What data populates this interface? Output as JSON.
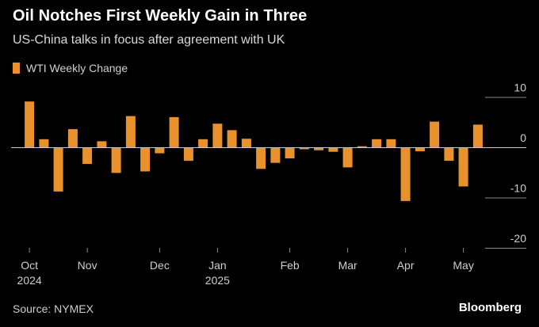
{
  "header": {
    "title": "Oil Notches First Weekly Gain in Three",
    "subtitle": "US-China talks in focus after agreement with UK"
  },
  "footer": {
    "source": "Source: NYMEX",
    "brand": "Bloomberg"
  },
  "colors": {
    "bar": "#e8912d",
    "zero_line": "#c8c8c8",
    "grid": "#8a8a8a",
    "text": "#cfcfcf"
  },
  "chart_data": {
    "type": "bar",
    "series": [
      {
        "name": "WTI Weekly Change",
        "values": [
          9.1,
          1.6,
          -8.8,
          3.6,
          -3.3,
          1.2,
          -5.1,
          6.2,
          -4.8,
          -1.2,
          6.0,
          -2.7,
          1.6,
          4.7,
          3.4,
          1.7,
          -4.3,
          -3.1,
          -2.2,
          -0.4,
          -0.6,
          -0.9,
          -4.0,
          0.2,
          1.6,
          1.6,
          -10.7,
          -0.8,
          5.1,
          -2.7,
          -7.8,
          4.5
        ]
      }
    ],
    "x_ticks": [
      {
        "index": 0,
        "label": "Oct",
        "year": "2024"
      },
      {
        "index": 4,
        "label": "Nov",
        "year": ""
      },
      {
        "index": 9,
        "label": "Dec",
        "year": ""
      },
      {
        "index": 13,
        "label": "Jan",
        "year": "2025"
      },
      {
        "index": 18,
        "label": "Feb",
        "year": ""
      },
      {
        "index": 22,
        "label": "Mar",
        "year": ""
      },
      {
        "index": 26,
        "label": "Apr",
        "year": ""
      },
      {
        "index": 30,
        "label": "May",
        "year": ""
      }
    ],
    "y_ticks": [
      10,
      0,
      -10,
      -20
    ],
    "ylim": [
      -20,
      10
    ],
    "ytick_side": "right",
    "legend_position": "top-left",
    "grid": false
  }
}
